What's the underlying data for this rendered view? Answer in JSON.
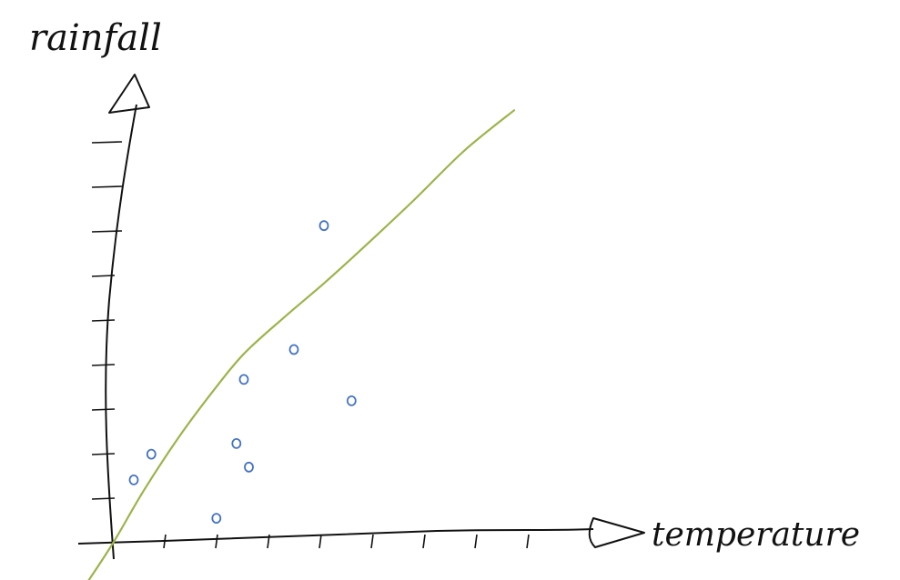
{
  "chart_data": {
    "type": "scatter",
    "title": "",
    "xlabel": "temperature",
    "ylabel": "rainfall",
    "grid": false,
    "legend": "none",
    "x_ticks": 8,
    "y_ticks": 9,
    "points_color": "#4472c4",
    "curve_color": "#9bb44a",
    "axis_color": "#111111",
    "points": [
      {
        "x": 0.4,
        "y": 1.45
      },
      {
        "x": 0.75,
        "y": 2.05
      },
      {
        "x": 2.05,
        "y": 0.55
      },
      {
        "x": 2.45,
        "y": 2.3
      },
      {
        "x": 2.7,
        "y": 1.75
      },
      {
        "x": 2.6,
        "y": 3.8
      },
      {
        "x": 3.6,
        "y": 4.5
      },
      {
        "x": 4.2,
        "y": 7.4
      },
      {
        "x": 4.75,
        "y": 3.3
      }
    ],
    "curve": [
      {
        "x": -0.5,
        "y": -0.9
      },
      {
        "x": 0.0,
        "y": 0.0
      },
      {
        "x": 0.6,
        "y": 1.2
      },
      {
        "x": 1.3,
        "y": 2.45
      },
      {
        "x": 2.0,
        "y": 3.55
      },
      {
        "x": 2.6,
        "y": 4.4
      },
      {
        "x": 3.4,
        "y": 5.25
      },
      {
        "x": 4.2,
        "y": 6.05
      },
      {
        "x": 5.0,
        "y": 6.9
      },
      {
        "x": 6.0,
        "y": 8.0
      },
      {
        "x": 7.0,
        "y": 9.15
      },
      {
        "x": 8.0,
        "y": 10.1
      }
    ]
  }
}
